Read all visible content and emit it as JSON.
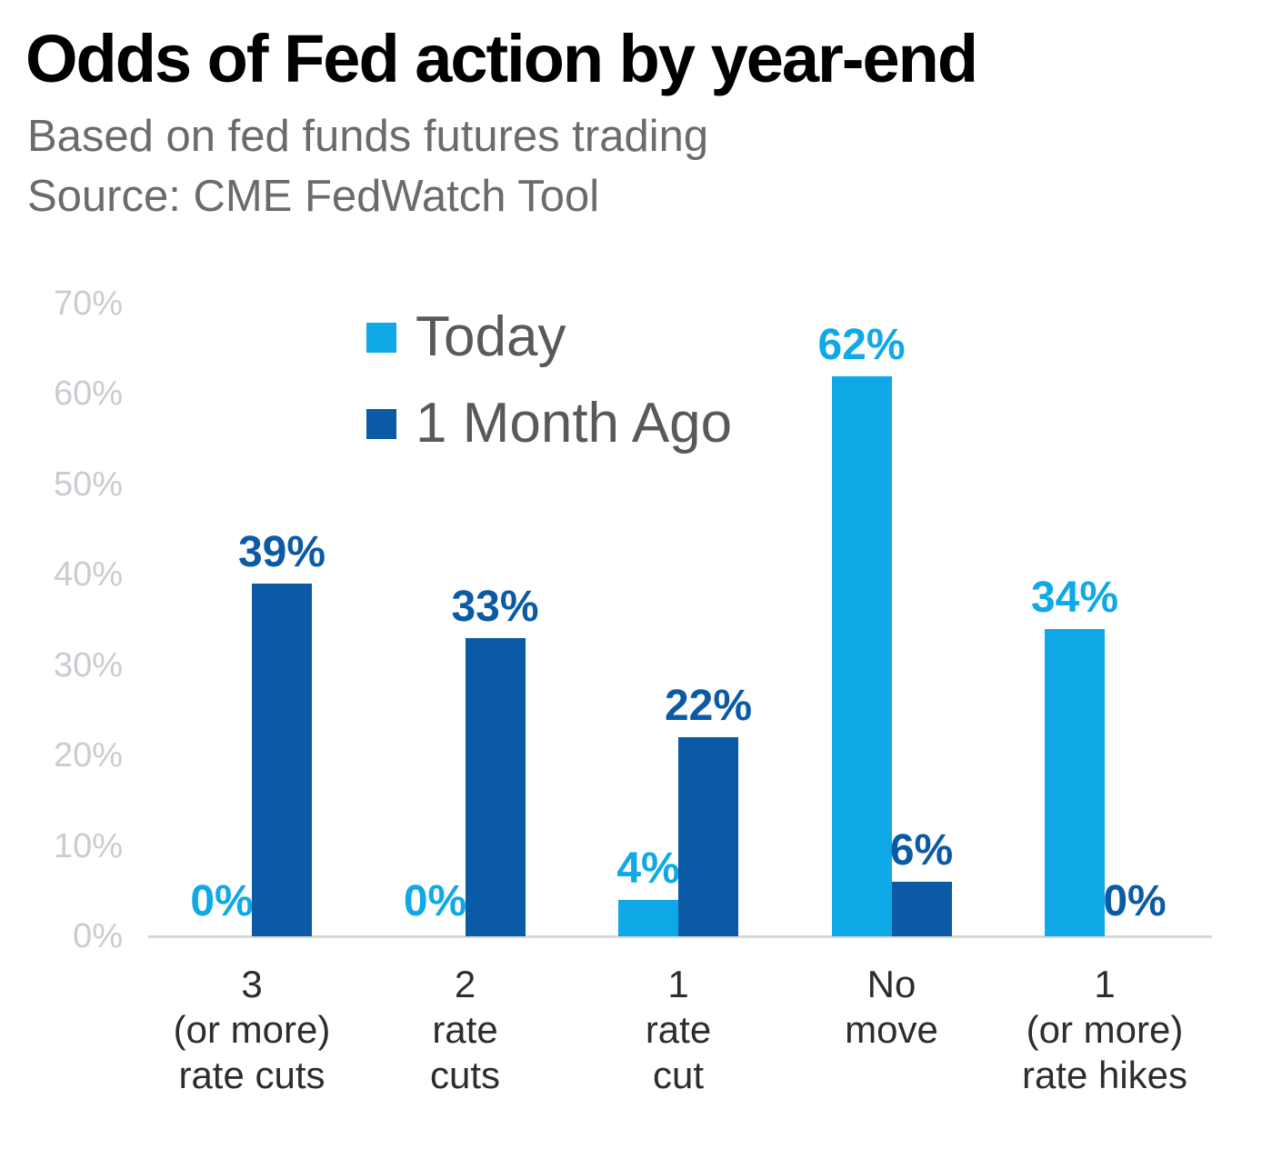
{
  "chart_data": {
    "type": "bar",
    "title": "Odds of Fed action by year-end",
    "subtitle": "Based on fed funds futures trading",
    "source": "Source: CME FedWatch Tool",
    "categories": [
      "3 (or more) rate cuts",
      "2 rate cuts",
      "1 rate cut",
      "No move",
      "1 (or more) rate hikes"
    ],
    "category_lines": [
      [
        "3",
        "(or more)",
        "rate cuts"
      ],
      [
        "2",
        "rate",
        "cuts"
      ],
      [
        "1",
        "rate",
        "cut"
      ],
      [
        "No",
        "move"
      ],
      [
        "1",
        "(or more)",
        "rate hikes"
      ]
    ],
    "series": [
      {
        "name": "Today",
        "key": "today",
        "color": "#0ea9e6",
        "values": [
          0,
          0,
          4,
          62,
          34
        ]
      },
      {
        "name": "1 Month Ago",
        "key": "month-ago",
        "color": "#0b5aa5",
        "values": [
          39,
          33,
          22,
          6,
          0
        ]
      }
    ],
    "y_ticks": [
      "0%",
      "10%",
      "20%",
      "30%",
      "40%",
      "50%",
      "60%",
      "70%"
    ],
    "ylim": [
      0,
      70
    ],
    "grid": false,
    "legend_position": "top-center-inside",
    "value_label_suffix": "%"
  },
  "colors": {
    "title_text": "#000000",
    "subtitle_text": "#6b6b6b",
    "legend_text": "#59595b",
    "y_tick_text": "#c9cdd2",
    "axis_line": "#d8d8d8",
    "category_text": "#2d2d2d"
  }
}
